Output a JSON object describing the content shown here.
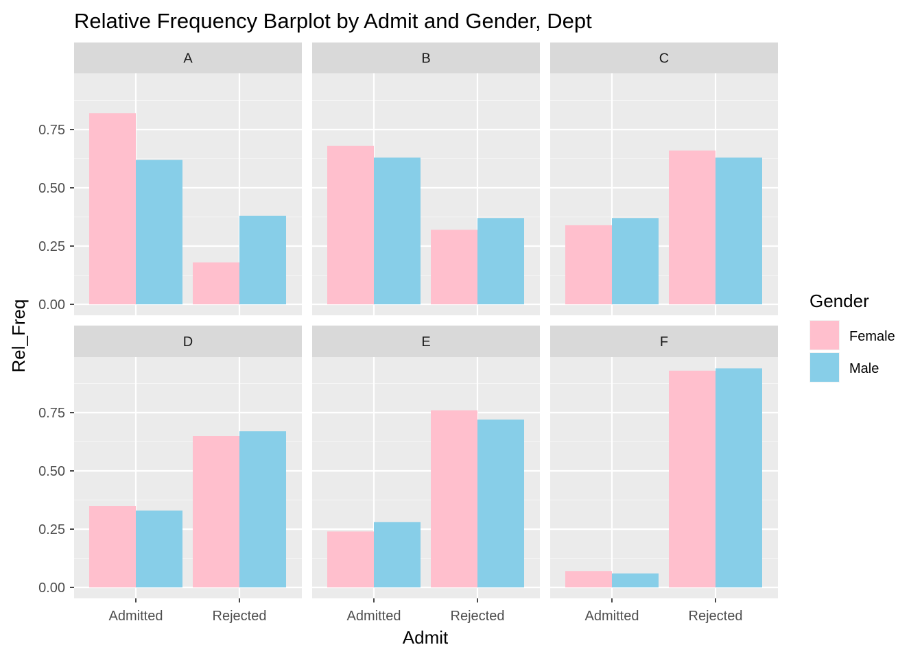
{
  "chart_data": {
    "type": "bar",
    "title": "Relative Frequency Barplot by Admit and Gender, Dept",
    "xlabel": "Admit",
    "ylabel": "Rel_Freq",
    "ylim": [
      0,
      1
    ],
    "yticks": [
      "0.00",
      "0.25",
      "0.50",
      "0.75"
    ],
    "ytick_values": [
      0,
      0.25,
      0.5,
      0.75
    ],
    "categories": [
      "Admitted",
      "Rejected"
    ],
    "legend": {
      "title": "Gender",
      "position": "right",
      "items": [
        {
          "label": "Female",
          "color": "#FFBFCD"
        },
        {
          "label": "Male",
          "color": "#87CEE8"
        }
      ]
    },
    "panels": [
      {
        "label": "A",
        "series": [
          {
            "name": "Female",
            "values": [
              0.82,
              0.18
            ]
          },
          {
            "name": "Male",
            "values": [
              0.62,
              0.38
            ]
          }
        ]
      },
      {
        "label": "B",
        "series": [
          {
            "name": "Female",
            "values": [
              0.68,
              0.32
            ]
          },
          {
            "name": "Male",
            "values": [
              0.63,
              0.37
            ]
          }
        ]
      },
      {
        "label": "C",
        "series": [
          {
            "name": "Female",
            "values": [
              0.34,
              0.66
            ]
          },
          {
            "name": "Male",
            "values": [
              0.37,
              0.63
            ]
          }
        ]
      },
      {
        "label": "D",
        "series": [
          {
            "name": "Female",
            "values": [
              0.35,
              0.65
            ]
          },
          {
            "name": "Male",
            "values": [
              0.33,
              0.67
            ]
          }
        ]
      },
      {
        "label": "E",
        "series": [
          {
            "name": "Female",
            "values": [
              0.24,
              0.76
            ]
          },
          {
            "name": "Male",
            "values": [
              0.28,
              0.72
            ]
          }
        ]
      },
      {
        "label": "F",
        "series": [
          {
            "name": "Female",
            "values": [
              0.07,
              0.93
            ]
          },
          {
            "name": "Male",
            "values": [
              0.06,
              0.94
            ]
          }
        ]
      }
    ]
  }
}
